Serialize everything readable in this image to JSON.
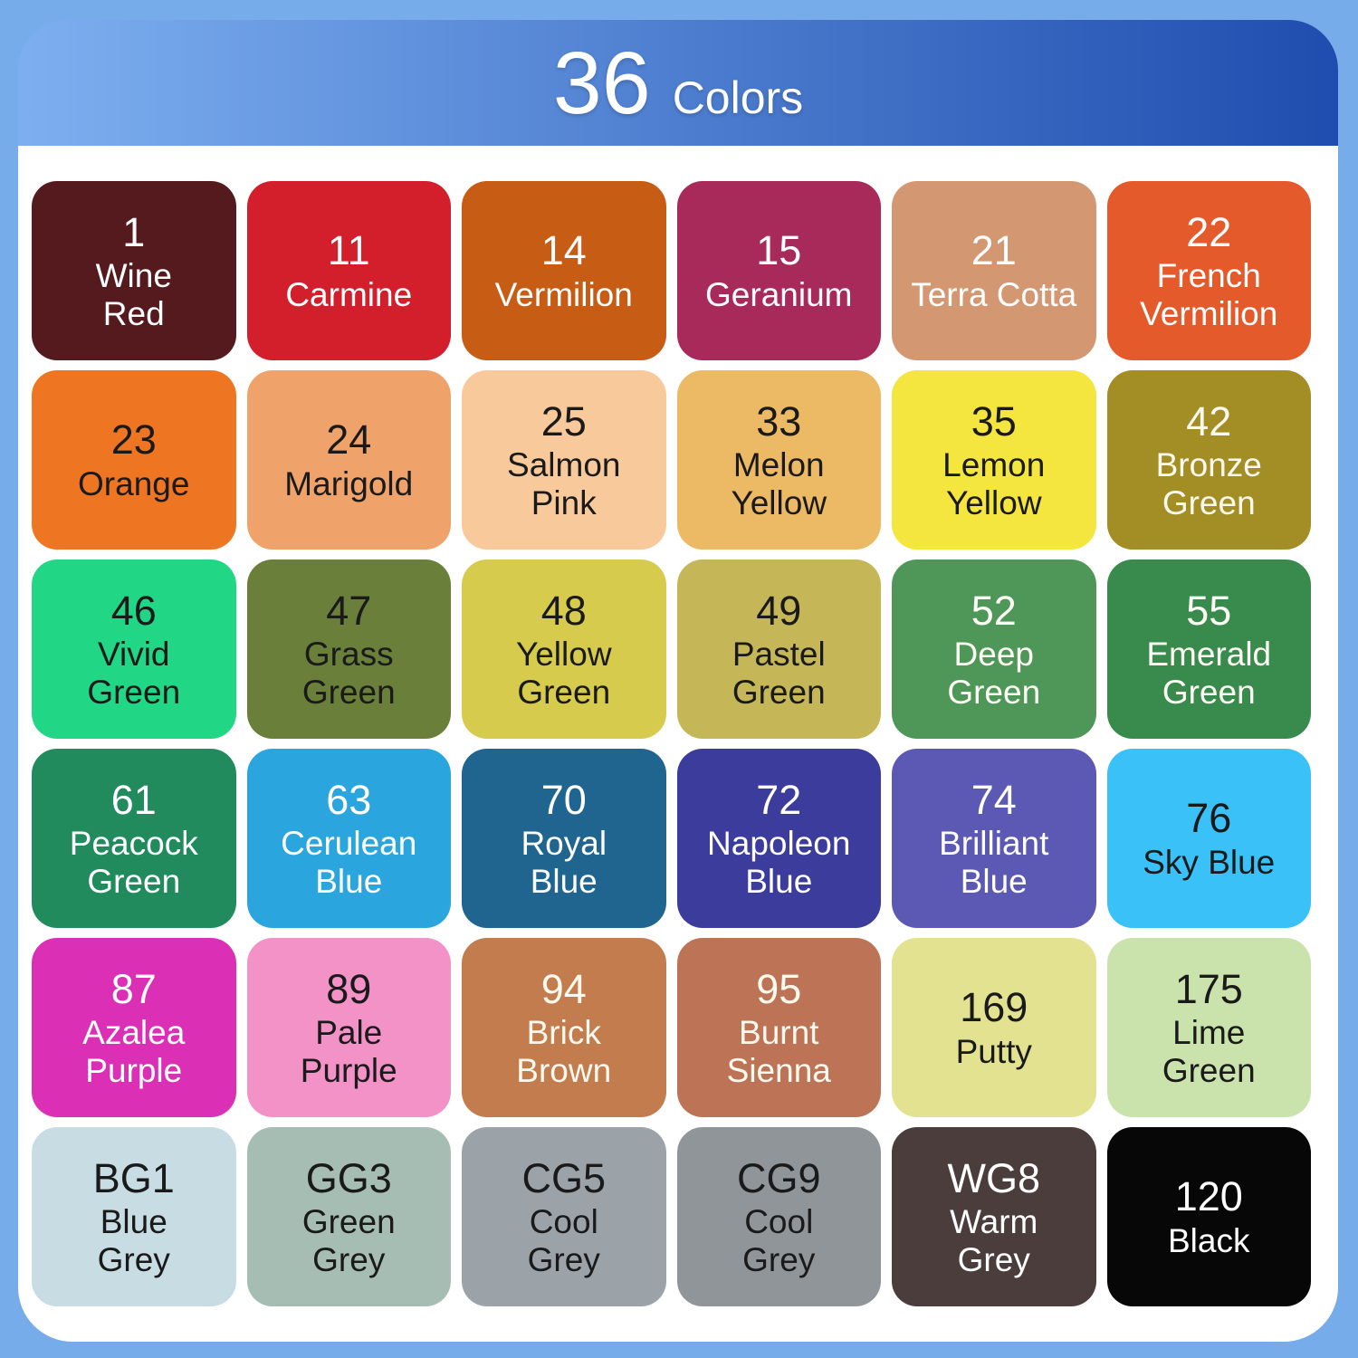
{
  "header": {
    "count": "36",
    "label": "Colors",
    "gradient_left": "#7DAFF0",
    "gradient_right": "#1F4DAF"
  },
  "background": {
    "outer": "#75ACE9",
    "panel": "#FFFFFF"
  },
  "swatches": [
    {
      "code": "1",
      "name": "Wine\nRed",
      "color": "#551A1D",
      "text_color": "#FFFFFF"
    },
    {
      "code": "11",
      "name": "Carmine",
      "color": "#D21F2B",
      "text_color": "#FFFFFF"
    },
    {
      "code": "14",
      "name": "Vermilion",
      "color": "#C75C15",
      "text_color": "#FFFFFF"
    },
    {
      "code": "15",
      "name": "Geranium",
      "color": "#A82A5B",
      "text_color": "#FFFFFF"
    },
    {
      "code": "21",
      "name": "Terra Cotta",
      "color": "#D39872",
      "text_color": "#FFFFFF"
    },
    {
      "code": "22",
      "name": "French\nVermilion",
      "color": "#E55A2B",
      "text_color": "#FFFFFF"
    },
    {
      "code": "23",
      "name": "Orange",
      "color": "#EE7522",
      "text_color": "#1A1A1A"
    },
    {
      "code": "24",
      "name": "Marigold",
      "color": "#F0A26B",
      "text_color": "#1A1A1A"
    },
    {
      "code": "25",
      "name": "Salmon\nPink",
      "color": "#F8C99B",
      "text_color": "#1A1A1A"
    },
    {
      "code": "33",
      "name": "Melon\nYellow",
      "color": "#ECB964",
      "text_color": "#1A1A1A"
    },
    {
      "code": "35",
      "name": "Lemon\nYellow",
      "color": "#F4E63F",
      "text_color": "#1A1A1A"
    },
    {
      "code": "42",
      "name": "Bronze\nGreen",
      "color": "#A38E26",
      "text_color": "#FDF9EE"
    },
    {
      "code": "46",
      "name": "Vivid\nGreen",
      "color": "#21D684",
      "text_color": "#1A1A1A"
    },
    {
      "code": "47",
      "name": "Grass\nGreen",
      "color": "#6A7F3A",
      "text_color": "#1A1A1A"
    },
    {
      "code": "48",
      "name": "Yellow\nGreen",
      "color": "#D6CB4D",
      "text_color": "#1A1A1A"
    },
    {
      "code": "49",
      "name": "Pastel\nGreen",
      "color": "#C5B757",
      "text_color": "#1A1A1A"
    },
    {
      "code": "52",
      "name": "Deep\nGreen",
      "color": "#4F9759",
      "text_color": "#FDFDF5"
    },
    {
      "code": "55",
      "name": "Emerald\nGreen",
      "color": "#398B4D",
      "text_color": "#FDFDF5"
    },
    {
      "code": "61",
      "name": "Peacock\nGreen",
      "color": "#218B5D",
      "text_color": "#FFFFFF"
    },
    {
      "code": "63",
      "name": "Cerulean\nBlue",
      "color": "#2BA5DD",
      "text_color": "#FFFFFF"
    },
    {
      "code": "70",
      "name": "Royal\nBlue",
      "color": "#1F6590",
      "text_color": "#FFFFFF"
    },
    {
      "code": "72",
      "name": "Napoleon\nBlue",
      "color": "#3B3C9B",
      "text_color": "#FFFFFF"
    },
    {
      "code": "74",
      "name": "Brilliant\nBlue",
      "color": "#5B59B4",
      "text_color": "#FFFFFF"
    },
    {
      "code": "76",
      "name": "Sky Blue",
      "color": "#3AC1F8",
      "text_color": "#1A1A1A"
    },
    {
      "code": "87",
      "name": "Azalea\nPurple",
      "color": "#DB30B5",
      "text_color": "#FFFFFF"
    },
    {
      "code": "89",
      "name": "Pale\nPurple",
      "color": "#F292C6",
      "text_color": "#1A1A1A"
    },
    {
      "code": "94",
      "name": "Brick\nBrown",
      "color": "#C27C4D",
      "text_color": "#FDF9EE"
    },
    {
      "code": "95",
      "name": "Burnt\nSienna",
      "color": "#BD7456",
      "text_color": "#FDF9EE"
    },
    {
      "code": "169",
      "name": "Putty",
      "color": "#E2E290",
      "text_color": "#1A1A1A"
    },
    {
      "code": "175",
      "name": "Lime\nGreen",
      "color": "#CAE3AD",
      "text_color": "#1A1A1A"
    },
    {
      "code": "BG1",
      "name": "Blue\nGrey",
      "color": "#C8DCE4",
      "text_color": "#1A1A1A"
    },
    {
      "code": "GG3",
      "name": "Green\nGrey",
      "color": "#A5BDB3",
      "text_color": "#1A1A1A"
    },
    {
      "code": "CG5",
      "name": "Cool\nGrey",
      "color": "#9CA3A8",
      "text_color": "#1A1A1A"
    },
    {
      "code": "CG9",
      "name": "Cool\nGrey",
      "color": "#8F9599",
      "text_color": "#1A1A1A"
    },
    {
      "code": "WG8",
      "name": "Warm\nGrey",
      "color": "#4A3D3C",
      "text_color": "#FFFFFF"
    },
    {
      "code": "120",
      "name": "Black",
      "color": "#070707",
      "text_color": "#FFFFFF"
    }
  ]
}
